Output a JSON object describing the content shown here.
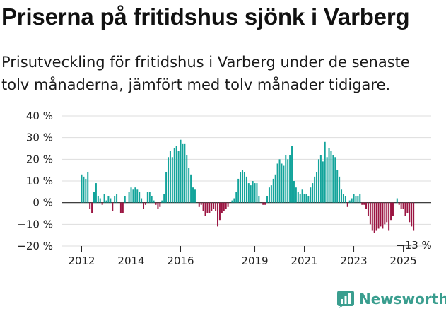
{
  "title": "Priserna på fritidshus sjönk i Varberg",
  "subtitle": "Prisutveckling för fritidshus i Varberg under de senaste tolv månaderna, jämfört med tolv månader tidigare.",
  "brand": {
    "name": "Newsworthy",
    "color": "#3a9e8f"
  },
  "colors": {
    "positive": "#13a49b",
    "negative": "#9b1542",
    "grid": "#dddddd",
    "axis": "#222222"
  },
  "chart_data": {
    "type": "bar",
    "x_start": "2012-01",
    "frequency": "monthly",
    "ylim": [
      -20,
      40
    ],
    "yticks": [
      "40 %",
      "30 %",
      "20 %",
      "10 %",
      "0 %",
      "−10 %",
      "−20 %"
    ],
    "xticks": [
      {
        "label": "2012",
        "index": 0
      },
      {
        "label": "2014",
        "index": 24
      },
      {
        "label": "2016",
        "index": 48
      },
      {
        "label": "2019",
        "index": 84
      },
      {
        "label": "2021",
        "index": 108
      },
      {
        "label": "2023",
        "index": 132
      },
      {
        "label": "2025",
        "index": 156
      }
    ],
    "end_label": "−13 %",
    "values": [
      13,
      12,
      11,
      14,
      -3,
      -5,
      5,
      9,
      3,
      2,
      -1,
      4,
      1,
      3,
      2,
      -4,
      3,
      4,
      0,
      -5,
      -5,
      3,
      0,
      5,
      7,
      6,
      7,
      6,
      5,
      2,
      -3,
      -1,
      5,
      5,
      3,
      1,
      -1,
      -3,
      -2,
      1,
      4,
      14,
      21,
      24,
      21,
      25,
      26,
      24,
      29,
      27,
      27,
      22,
      16,
      13,
      7,
      6,
      0,
      -2,
      -1,
      -4,
      -6,
      -5,
      -5,
      -4,
      -3,
      -4,
      -11,
      -8,
      -5,
      -4,
      -3,
      -2,
      0,
      1,
      2,
      5,
      11,
      14,
      15,
      14,
      12,
      9,
      8,
      10,
      9,
      9,
      3,
      0,
      -1,
      -1,
      3,
      7,
      8,
      11,
      13,
      18,
      20,
      18,
      17,
      22,
      20,
      22,
      26,
      10,
      7,
      5,
      4,
      6,
      4,
      4,
      3,
      7,
      9,
      12,
      14,
      20,
      22,
      19,
      28,
      21,
      25,
      24,
      22,
      21,
      15,
      12,
      6,
      4,
      3,
      -2,
      1,
      2,
      4,
      3,
      3,
      4,
      -1,
      -1,
      -3,
      -6,
      -10,
      -13,
      -14,
      -13,
      -12,
      -11,
      -12,
      -10,
      -9,
      -13,
      -8,
      -6,
      0,
      2,
      -1,
      -3,
      -3,
      -6,
      -5,
      -9,
      -11,
      -13
    ]
  }
}
